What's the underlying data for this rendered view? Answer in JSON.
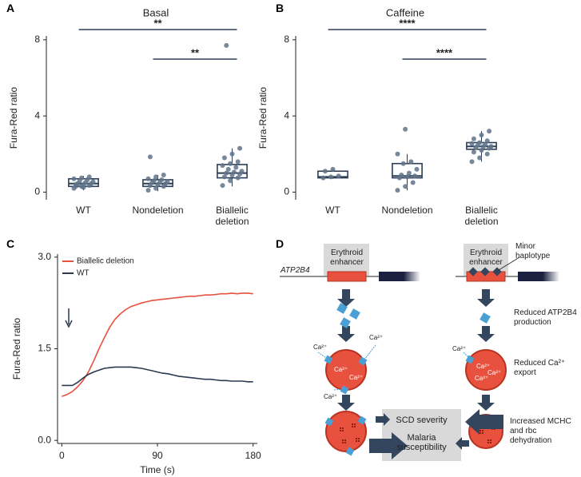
{
  "chart_data": [
    {
      "type": "box",
      "panel_label": "A",
      "title": "Basal",
      "ylabel": "Fura-Red ratio",
      "categories": [
        "WT",
        "Nondeletion",
        "Biallelic deletion"
      ],
      "color": "#2c3e55",
      "point_color": "#5f7389",
      "boxes": [
        {
          "whisker_low": 0.1,
          "q1": 0.3,
          "median": 0.45,
          "q3": 0.7,
          "whisker_high": 0.85,
          "points": [
            0.2,
            0.3,
            0.35,
            0.4,
            0.4,
            0.45,
            0.45,
            0.5,
            0.55,
            0.6,
            0.65,
            0.7,
            0.75,
            0.8,
            0.3,
            0.25
          ]
        },
        {
          "whisker_low": 0.05,
          "q1": 0.3,
          "median": 0.45,
          "q3": 0.65,
          "whisker_high": 0.9,
          "points": [
            0.1,
            0.2,
            0.3,
            0.35,
            0.4,
            0.45,
            0.5,
            0.5,
            0.55,
            0.6,
            0.65,
            0.7,
            0.8,
            0.9,
            1.85
          ]
        },
        {
          "whisker_low": 0.3,
          "q1": 0.75,
          "median": 1.0,
          "q3": 1.45,
          "whisker_high": 2.3,
          "points": [
            0.35,
            0.6,
            0.75,
            0.8,
            0.9,
            0.95,
            1.0,
            1.05,
            1.1,
            1.2,
            1.3,
            1.4,
            1.5,
            1.6,
            1.8,
            2.0,
            2.3,
            7.7
          ]
        }
      ],
      "ylim": [
        -0.4,
        8.2
      ],
      "yticks": [
        0,
        4,
        8
      ],
      "brackets": [
        {
          "from": 0,
          "to": 2,
          "label": "**"
        },
        {
          "from": 1,
          "to": 2,
          "label": "**"
        }
      ]
    },
    {
      "type": "box",
      "panel_label": "B",
      "title": "Caffeine",
      "ylabel": "Fura-Red ratio",
      "categories": [
        "WT",
        "Nondeletion",
        "Biallelic deletion"
      ],
      "color": "#2c3e55",
      "point_color": "#5f7389",
      "boxes": [
        {
          "whisker_low": 0.7,
          "q1": 0.75,
          "median": 0.8,
          "q3": 1.1,
          "whisker_high": 1.2,
          "points": [
            0.75,
            0.8,
            0.85,
            1.1,
            1.2
          ]
        },
        {
          "whisker_low": 0.1,
          "q1": 0.75,
          "median": 0.85,
          "q3": 1.5,
          "whisker_high": 2.0,
          "points": [
            0.1,
            0.3,
            0.5,
            0.75,
            0.8,
            0.85,
            0.9,
            1.0,
            1.2,
            1.5,
            1.6,
            2.0,
            3.3
          ]
        },
        {
          "whisker_low": 1.6,
          "q1": 2.25,
          "median": 2.4,
          "q3": 2.6,
          "whisker_high": 3.2,
          "points": [
            1.6,
            1.8,
            2.0,
            2.1,
            2.2,
            2.3,
            2.35,
            2.4,
            2.4,
            2.45,
            2.5,
            2.55,
            2.6,
            2.7,
            2.8,
            3.0,
            3.2
          ]
        }
      ],
      "ylim": [
        -0.4,
        8.2
      ],
      "yticks": [
        0,
        4,
        8
      ],
      "brackets": [
        {
          "from": 0,
          "to": 2,
          "label": "****"
        },
        {
          "from": 1,
          "to": 2,
          "label": "****"
        }
      ]
    },
    {
      "type": "line",
      "panel_label": "C",
      "xlabel": "Time (s)",
      "ylabel": "Fura-Red ratio",
      "x": [
        0,
        5,
        10,
        15,
        20,
        25,
        30,
        35,
        40,
        45,
        50,
        55,
        60,
        65,
        70,
        75,
        80,
        85,
        90,
        95,
        100,
        105,
        110,
        115,
        120,
        125,
        130,
        135,
        140,
        145,
        150,
        155,
        160,
        165,
        170,
        175,
        180
      ],
      "series": [
        {
          "name": "Biallelic deletion",
          "color": "#e8513d",
          "values": [
            0.72,
            0.75,
            0.8,
            0.88,
            0.98,
            1.12,
            1.3,
            1.5,
            1.68,
            1.85,
            1.98,
            2.07,
            2.14,
            2.19,
            2.22,
            2.25,
            2.27,
            2.29,
            2.3,
            2.31,
            2.32,
            2.33,
            2.34,
            2.35,
            2.36,
            2.36,
            2.37,
            2.38,
            2.38,
            2.39,
            2.4,
            2.4,
            2.41,
            2.4,
            2.41,
            2.41,
            2.4
          ]
        },
        {
          "name": "WT",
          "color": "#2b3a4e",
          "values": [
            0.9,
            0.9,
            0.9,
            0.95,
            1.02,
            1.08,
            1.12,
            1.15,
            1.18,
            1.19,
            1.2,
            1.2,
            1.2,
            1.2,
            1.19,
            1.18,
            1.16,
            1.14,
            1.12,
            1.1,
            1.09,
            1.07,
            1.05,
            1.04,
            1.03,
            1.02,
            1.01,
            1.0,
            1.0,
            0.99,
            0.98,
            0.98,
            0.97,
            0.97,
            0.97,
            0.96,
            0.96
          ]
        }
      ],
      "xlim": [
        -4,
        184
      ],
      "xticks": [
        0,
        90,
        180
      ],
      "ylim": [
        -0.05,
        3.05
      ],
      "yticks": [
        {
          "value": 0,
          "label": "0.0"
        },
        {
          "value": 1.5,
          "label": "1.5"
        },
        {
          "value": 3,
          "label": "3.0"
        }
      ],
      "legend": "top-left"
    }
  ],
  "diagram": {
    "panel_label": "D",
    "gene": "ATP2B4",
    "enhancer_labels": [
      "Erythroid enhancer",
      "Erythroid enhancer"
    ],
    "minor_haplotype": "Minor haplotype",
    "reduced_production": "Reduced ATP2B4 production",
    "reduced_export": "Reduced Ca²⁺ export",
    "outcome_labels": [
      "SCD severity",
      "Malaria susceptibility"
    ],
    "dehydration": "Increased MCHC and rbc dehydration",
    "ion_labels": [
      "Ca²⁺",
      "Ca²⁺",
      "Ca²⁺",
      "Ca²⁺",
      "Ca²⁺",
      "Ca²⁺",
      "Ca²⁺",
      "Ca²⁺",
      "Ca²⁺"
    ]
  }
}
